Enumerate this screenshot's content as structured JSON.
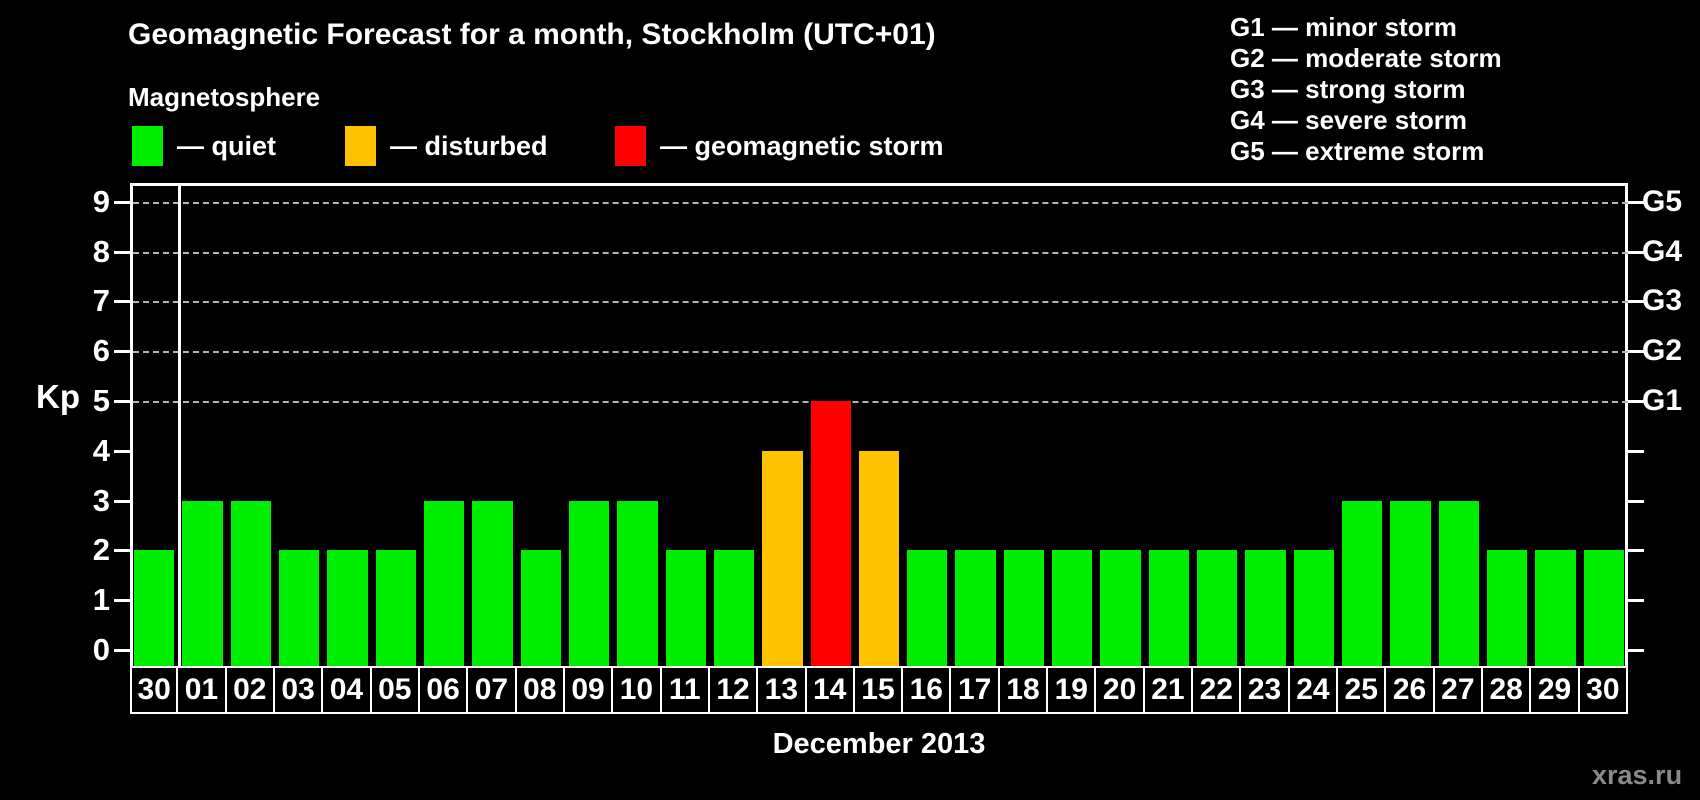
{
  "title": "Geomagnetic Forecast for a month, Stockholm (UTC+01)",
  "legend": {
    "heading": "Magnetosphere",
    "items": [
      {
        "key": "quiet",
        "label": "— quiet",
        "color": "#00ee00"
      },
      {
        "key": "disturbed",
        "label": "— disturbed",
        "color": "#ffc200"
      },
      {
        "key": "storm",
        "label": "— geomagnetic storm",
        "color": "#ff0000"
      }
    ]
  },
  "g_scale_legend": [
    "G1 — minor storm",
    "G2 — moderate storm",
    "G3 — strong storm",
    "G4 — severe storm",
    "G5 — extreme storm"
  ],
  "axis": {
    "y_label": "Kp",
    "y_ticks": [
      0,
      1,
      2,
      3,
      4,
      5,
      6,
      7,
      8,
      9
    ],
    "right_labels": [
      {
        "label": "G1",
        "kp": 5
      },
      {
        "label": "G2",
        "kp": 6
      },
      {
        "label": "G3",
        "kp": 7
      },
      {
        "label": "G4",
        "kp": 8
      },
      {
        "label": "G5",
        "kp": 9
      }
    ],
    "x_label": "December 2013"
  },
  "watermark": "xras.ru",
  "colors": {
    "quiet": "#00ee00",
    "disturbed": "#ffc200",
    "storm": "#ff0000",
    "grid": "#b4b4b4",
    "axis": "#ffffff",
    "background": "#000000"
  },
  "chart_data": {
    "type": "bar",
    "title": "Geomagnetic Forecast for a month, Stockholm (UTC+01)",
    "xlabel": "December 2013",
    "ylabel": "Kp",
    "ylim": [
      0,
      9
    ],
    "grid_levels": [
      5,
      6,
      7,
      8,
      9
    ],
    "legend_position": "top",
    "categories": [
      "30",
      "01",
      "02",
      "03",
      "04",
      "05",
      "06",
      "07",
      "08",
      "09",
      "10",
      "11",
      "12",
      "13",
      "14",
      "15",
      "16",
      "17",
      "18",
      "19",
      "20",
      "21",
      "22",
      "23",
      "24",
      "25",
      "26",
      "27",
      "28",
      "29",
      "30"
    ],
    "values": [
      2,
      3,
      3,
      2,
      2,
      2,
      3,
      3,
      2,
      3,
      3,
      2,
      2,
      4,
      5,
      4,
      2,
      2,
      2,
      2,
      2,
      2,
      2,
      2,
      2,
      3,
      3,
      3,
      2,
      2,
      2
    ],
    "statuses": [
      "quiet",
      "quiet",
      "quiet",
      "quiet",
      "quiet",
      "quiet",
      "quiet",
      "quiet",
      "quiet",
      "quiet",
      "quiet",
      "quiet",
      "quiet",
      "disturbed",
      "storm",
      "disturbed",
      "quiet",
      "quiet",
      "quiet",
      "quiet",
      "quiet",
      "quiet",
      "quiet",
      "quiet",
      "quiet",
      "quiet",
      "quiet",
      "quiet",
      "quiet",
      "quiet",
      "quiet"
    ],
    "month_separator_after_index": 0
  }
}
